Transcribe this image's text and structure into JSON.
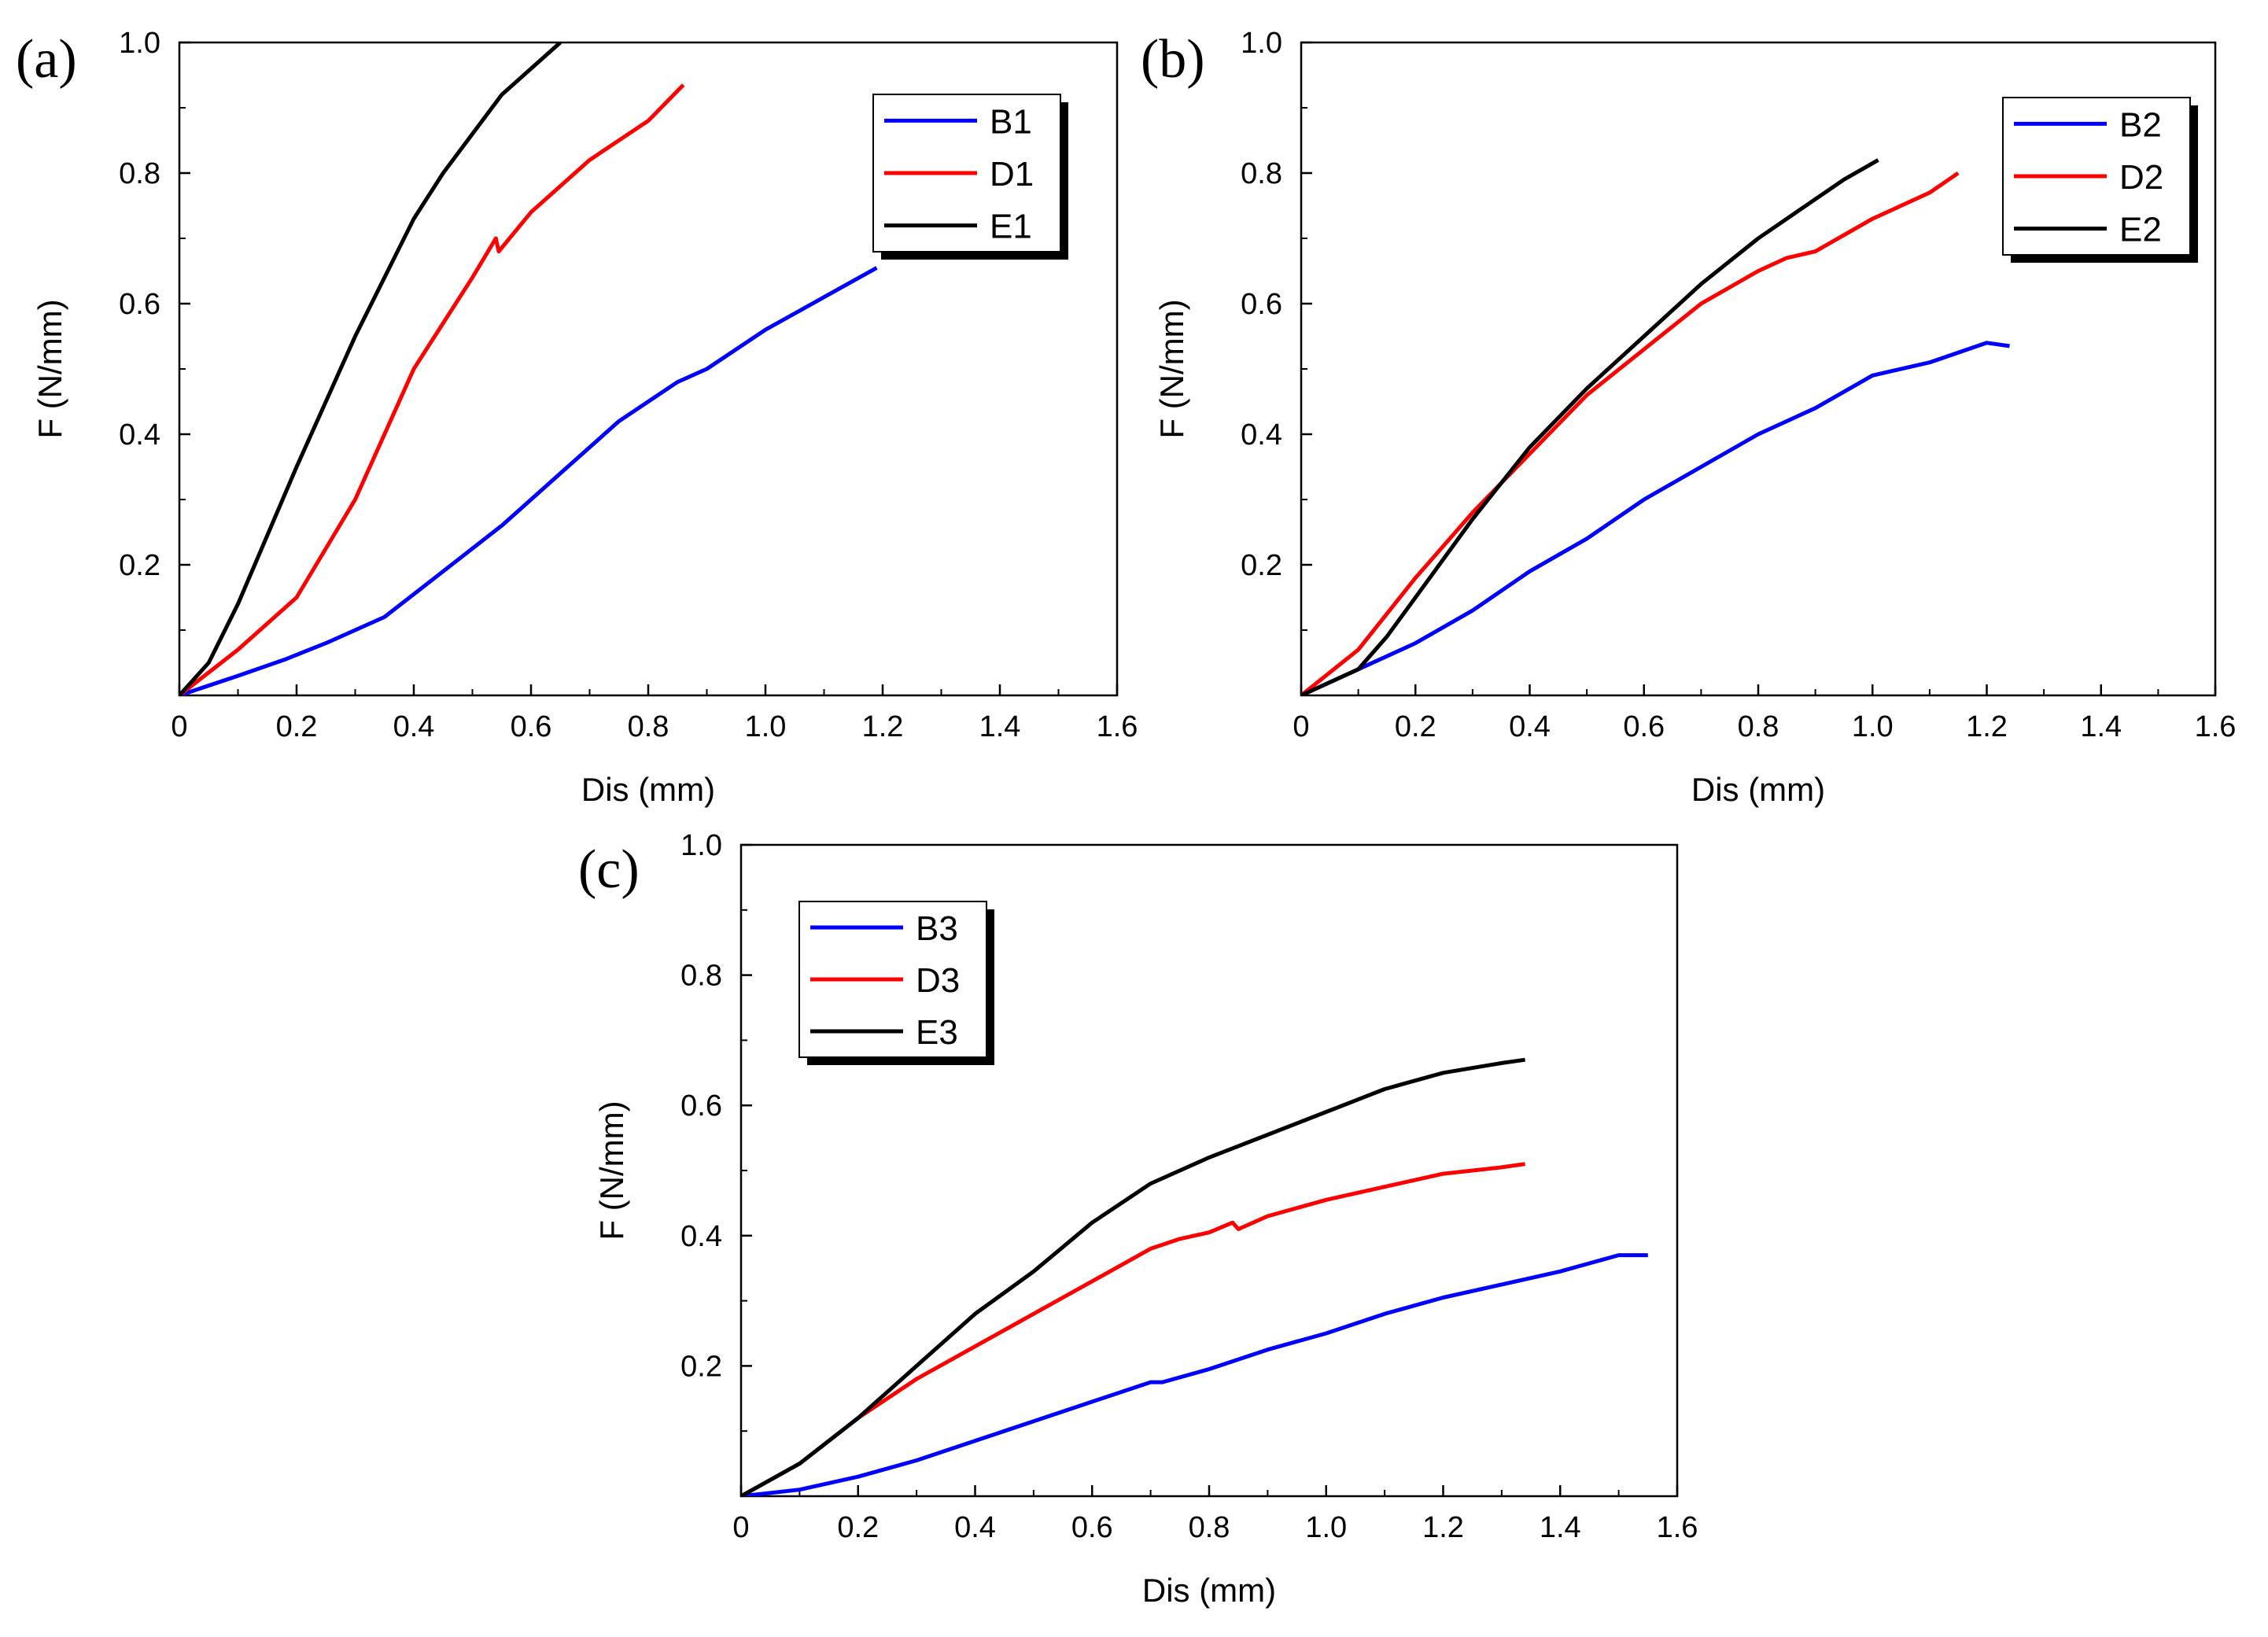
{
  "chart_data": [
    {
      "type": "line",
      "panel_label": "(a)",
      "xlabel": "Dis (mm)",
      "ylabel": "F (N/mm)",
      "xlim": [
        0,
        1.6
      ],
      "ylim": [
        0,
        1.0
      ],
      "x_ticks": [
        "0",
        "0.2",
        "0.4",
        "0.6",
        "0.8",
        "1.0",
        "1.2",
        "1.4",
        "1.6"
      ],
      "y_ticks": [
        "0.2",
        "0.4",
        "0.6",
        "0.8",
        "1.0"
      ],
      "legend_position": "top-right",
      "series": [
        {
          "name": "B1",
          "color": "#0000ff",
          "points": [
            [
              0,
              0
            ],
            [
              0.1,
              0.03
            ],
            [
              0.18,
              0.055
            ],
            [
              0.25,
              0.08
            ],
            [
              0.35,
              0.12
            ],
            [
              0.45,
              0.19
            ],
            [
              0.55,
              0.26
            ],
            [
              0.65,
              0.34
            ],
            [
              0.75,
              0.42
            ],
            [
              0.85,
              0.48
            ],
            [
              0.9,
              0.5
            ],
            [
              1.0,
              0.56
            ],
            [
              1.1,
              0.61
            ],
            [
              1.19,
              0.655
            ]
          ]
        },
        {
          "name": "D1",
          "color": "#ff0000",
          "points": [
            [
              0,
              0
            ],
            [
              0.1,
              0.07
            ],
            [
              0.2,
              0.15
            ],
            [
              0.3,
              0.3
            ],
            [
              0.4,
              0.5
            ],
            [
              0.5,
              0.64
            ],
            [
              0.54,
              0.7
            ],
            [
              0.545,
              0.68
            ],
            [
              0.6,
              0.74
            ],
            [
              0.7,
              0.82
            ],
            [
              0.8,
              0.88
            ],
            [
              0.86,
              0.935
            ]
          ]
        },
        {
          "name": "E1",
          "color": "#000000",
          "points": [
            [
              0,
              0
            ],
            [
              0.05,
              0.05
            ],
            [
              0.1,
              0.14
            ],
            [
              0.2,
              0.35
            ],
            [
              0.3,
              0.55
            ],
            [
              0.4,
              0.73
            ],
            [
              0.45,
              0.8
            ],
            [
              0.5,
              0.86
            ],
            [
              0.55,
              0.92
            ],
            [
              0.6,
              0.96
            ],
            [
              0.65,
              1.0
            ]
          ]
        }
      ]
    },
    {
      "type": "line",
      "panel_label": "(b)",
      "xlabel": "Dis (mm)",
      "ylabel": "F (N/mm)",
      "xlim": [
        0,
        1.6
      ],
      "ylim": [
        0,
        1.0
      ],
      "x_ticks": [
        "0",
        "0.2",
        "0.4",
        "0.6",
        "0.8",
        "1.0",
        "1.2",
        "1.4",
        "1.6"
      ],
      "y_ticks": [
        "0.2",
        "0.4",
        "0.6",
        "0.8",
        "1.0"
      ],
      "legend_position": "top-right",
      "series": [
        {
          "name": "B2",
          "color": "#0000ff",
          "points": [
            [
              0,
              0
            ],
            [
              0.1,
              0.04
            ],
            [
              0.2,
              0.08
            ],
            [
              0.3,
              0.13
            ],
            [
              0.4,
              0.19
            ],
            [
              0.5,
              0.24
            ],
            [
              0.6,
              0.3
            ],
            [
              0.7,
              0.35
            ],
            [
              0.8,
              0.4
            ],
            [
              0.9,
              0.44
            ],
            [
              1.0,
              0.49
            ],
            [
              1.1,
              0.51
            ],
            [
              1.2,
              0.54
            ],
            [
              1.24,
              0.535
            ]
          ]
        },
        {
          "name": "D2",
          "color": "#ff0000",
          "points": [
            [
              0,
              0
            ],
            [
              0.1,
              0.07
            ],
            [
              0.2,
              0.18
            ],
            [
              0.3,
              0.28
            ],
            [
              0.4,
              0.37
            ],
            [
              0.5,
              0.46
            ],
            [
              0.6,
              0.53
            ],
            [
              0.7,
              0.6
            ],
            [
              0.8,
              0.65
            ],
            [
              0.85,
              0.67
            ],
            [
              0.9,
              0.68
            ],
            [
              1.0,
              0.73
            ],
            [
              1.1,
              0.77
            ],
            [
              1.15,
              0.8
            ]
          ]
        },
        {
          "name": "E2",
          "color": "#000000",
          "points": [
            [
              0,
              0
            ],
            [
              0.1,
              0.04
            ],
            [
              0.15,
              0.09
            ],
            [
              0.2,
              0.15
            ],
            [
              0.3,
              0.27
            ],
            [
              0.4,
              0.38
            ],
            [
              0.5,
              0.47
            ],
            [
              0.6,
              0.55
            ],
            [
              0.7,
              0.63
            ],
            [
              0.8,
              0.7
            ],
            [
              0.9,
              0.76
            ],
            [
              0.95,
              0.79
            ],
            [
              1.01,
              0.82
            ]
          ]
        }
      ]
    },
    {
      "type": "line",
      "panel_label": "(c)",
      "xlabel": "Dis (mm)",
      "ylabel": "F (N/mm)",
      "xlim": [
        0,
        1.6
      ],
      "ylim": [
        0,
        1.0
      ],
      "x_ticks": [
        "0",
        "0.2",
        "0.4",
        "0.6",
        "0.8",
        "1.0",
        "1.2",
        "1.4",
        "1.6"
      ],
      "y_ticks": [
        "0.2",
        "0.4",
        "0.6",
        "0.8",
        "1.0"
      ],
      "legend_position": "top-left",
      "series": [
        {
          "name": "B3",
          "color": "#0000ff",
          "points": [
            [
              0,
              0
            ],
            [
              0.1,
              0.01
            ],
            [
              0.2,
              0.03
            ],
            [
              0.3,
              0.055
            ],
            [
              0.4,
              0.085
            ],
            [
              0.5,
              0.115
            ],
            [
              0.6,
              0.145
            ],
            [
              0.7,
              0.175
            ],
            [
              0.72,
              0.175
            ],
            [
              0.8,
              0.195
            ],
            [
              0.9,
              0.225
            ],
            [
              1.0,
              0.25
            ],
            [
              1.1,
              0.28
            ],
            [
              1.2,
              0.305
            ],
            [
              1.3,
              0.325
            ],
            [
              1.4,
              0.345
            ],
            [
              1.5,
              0.37
            ],
            [
              1.55,
              0.37
            ]
          ]
        },
        {
          "name": "D3",
          "color": "#ff0000",
          "points": [
            [
              0,
              0
            ],
            [
              0.1,
              0.05
            ],
            [
              0.2,
              0.12
            ],
            [
              0.3,
              0.18
            ],
            [
              0.4,
              0.23
            ],
            [
              0.5,
              0.28
            ],
            [
              0.6,
              0.33
            ],
            [
              0.7,
              0.38
            ],
            [
              0.75,
              0.395
            ],
            [
              0.8,
              0.405
            ],
            [
              0.84,
              0.42
            ],
            [
              0.85,
              0.41
            ],
            [
              0.9,
              0.43
            ],
            [
              1.0,
              0.455
            ],
            [
              1.1,
              0.475
            ],
            [
              1.2,
              0.495
            ],
            [
              1.3,
              0.505
            ],
            [
              1.34,
              0.51
            ]
          ]
        },
        {
          "name": "E3",
          "color": "#000000",
          "points": [
            [
              0,
              0
            ],
            [
              0.1,
              0.05
            ],
            [
              0.2,
              0.12
            ],
            [
              0.3,
              0.2
            ],
            [
              0.4,
              0.28
            ],
            [
              0.5,
              0.345
            ],
            [
              0.6,
              0.42
            ],
            [
              0.7,
              0.48
            ],
            [
              0.8,
              0.52
            ],
            [
              0.9,
              0.555
            ],
            [
              1.0,
              0.59
            ],
            [
              1.1,
              0.625
            ],
            [
              1.2,
              0.65
            ],
            [
              1.3,
              0.665
            ],
            [
              1.34,
              0.67
            ]
          ]
        }
      ]
    }
  ]
}
